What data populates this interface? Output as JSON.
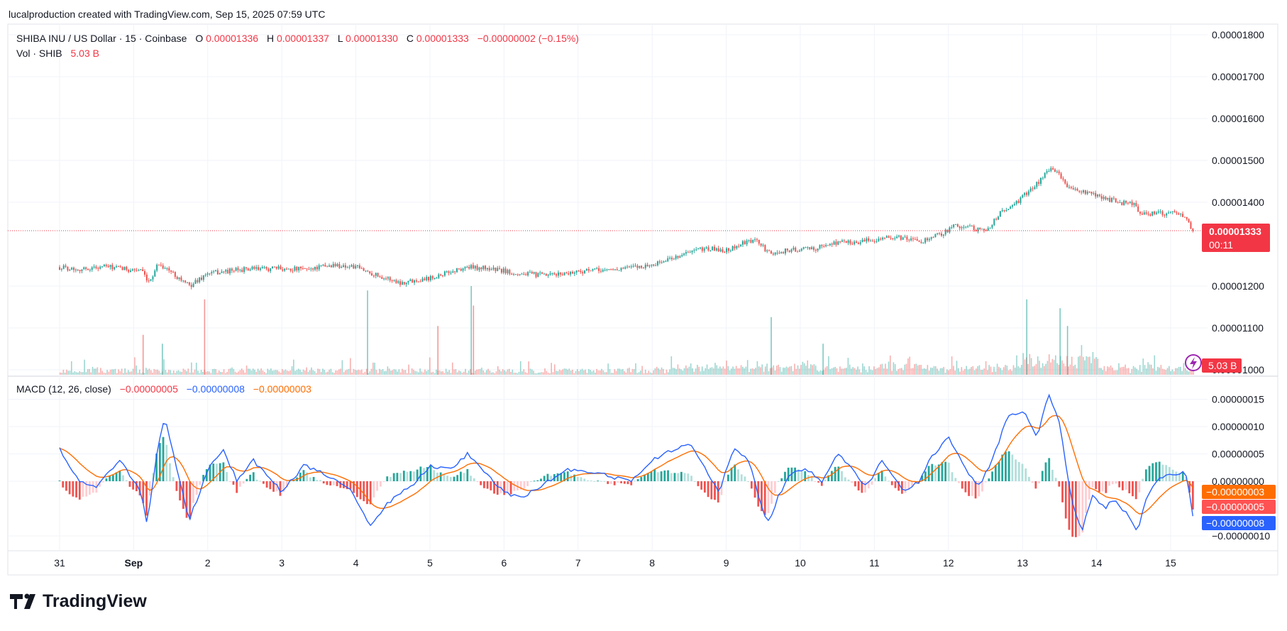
{
  "header": {
    "attribution": "lucalproduction created with TradingView.com, Sep 15, 2025 07:59 UTC"
  },
  "legend": {
    "symbol": "SHIBA INU / US Dollar · 15 · Coinbase",
    "o_label": "O",
    "o_value": "0.00001336",
    "h_label": "H",
    "h_value": "0.00001337",
    "l_label": "L",
    "l_value": "0.00001330",
    "c_label": "C",
    "c_value": "0.00001333",
    "change": "−0.00000002 (−0.15%)",
    "vol_label": "Vol · SHIB",
    "vol_value": "5.03 B"
  },
  "macd_legend": {
    "label": "MACD (12, 26, close)",
    "hist_value": "−0.00000005",
    "macd_value": "−0.00000008",
    "signal_value": "−0.00000003"
  },
  "price_axis": {
    "ticks": [
      "0.00001800",
      "0.00001700",
      "0.00001600",
      "0.00001500",
      "0.00001400",
      "0.00001200",
      "0.00001100",
      "0.00001000"
    ],
    "current_price": "0.00001333",
    "countdown": "00:11",
    "volume_badge": "5.03 B"
  },
  "macd_axis": {
    "ticks": [
      "0.00000015",
      "0.00000010",
      "0.00000005",
      "0.00000000",
      "−0.00000010"
    ],
    "badge_signal": "−0.00000003",
    "badge_hist": "−0.00000005",
    "badge_macd": "−0.00000008"
  },
  "time_axis": {
    "labels": [
      "31",
      "Sep",
      "2",
      "3",
      "4",
      "5",
      "6",
      "7",
      "8",
      "9",
      "10",
      "11",
      "12",
      "13",
      "14",
      "15"
    ]
  },
  "logo": {
    "text": "TradingView"
  },
  "colors": {
    "up": "#26a69a",
    "down": "#ef5350",
    "macd": "#2962ff",
    "signal": "#ff6d00",
    "price_badge": "#f23645",
    "grid": "#f0f3fa",
    "text": "#131722"
  },
  "chart_data": [
    {
      "type": "candlestick",
      "title": "SHIBA INU / US Dollar · 15 · Coinbase",
      "x_labels": [
        "31",
        "Sep",
        "2",
        "3",
        "4",
        "5",
        "6",
        "7",
        "8",
        "9",
        "10",
        "11",
        "12",
        "13",
        "14",
        "15"
      ],
      "ylim": [
        9.8e-06,
        1.82e-05
      ],
      "approx_close_path": [
        [
          0.0,
          1.245e-05
        ],
        [
          0.3,
          1.24e-05
        ],
        [
          0.6,
          1.247e-05
        ],
        [
          0.9,
          1.24e-05
        ],
        [
          1.1,
          1.238e-05
        ],
        [
          1.2,
          1.205e-05
        ],
        [
          1.33,
          1.255e-05
        ],
        [
          1.55,
          1.228e-05
        ],
        [
          1.75,
          1.2e-05
        ],
        [
          2.0,
          1.23e-05
        ],
        [
          2.5,
          1.24e-05
        ],
        [
          3.0,
          1.242e-05
        ],
        [
          3.3,
          1.24e-05
        ],
        [
          3.7,
          1.25e-05
        ],
        [
          4.0,
          1.245e-05
        ],
        [
          4.3,
          1.225e-05
        ],
        [
          4.6,
          1.208e-05
        ],
        [
          5.0,
          1.22e-05
        ],
        [
          5.3,
          1.235e-05
        ],
        [
          5.5,
          1.245e-05
        ],
        [
          5.8,
          1.242e-05
        ],
        [
          6.2,
          1.23e-05
        ],
        [
          6.6,
          1.225e-05
        ],
        [
          7.0,
          1.235e-05
        ],
        [
          7.5,
          1.24e-05
        ],
        [
          8.0,
          1.25e-05
        ],
        [
          8.4,
          1.275e-05
        ],
        [
          8.7,
          1.29e-05
        ],
        [
          9.0,
          1.285e-05
        ],
        [
          9.2,
          1.3e-05
        ],
        [
          9.4,
          1.31e-05
        ],
        [
          9.6,
          1.275e-05
        ],
        [
          9.8,
          1.285e-05
        ],
        [
          10.2,
          1.29e-05
        ],
        [
          10.5,
          1.305e-05
        ],
        [
          10.8,
          1.305e-05
        ],
        [
          11.1,
          1.315e-05
        ],
        [
          11.4,
          1.315e-05
        ],
        [
          11.6,
          1.305e-05
        ],
        [
          11.9,
          1.325e-05
        ],
        [
          12.1,
          1.345e-05
        ],
        [
          12.3,
          1.34e-05
        ],
        [
          12.5,
          1.33e-05
        ],
        [
          12.7,
          1.375e-05
        ],
        [
          12.9,
          1.395e-05
        ],
        [
          13.1,
          1.43e-05
        ],
        [
          13.2,
          1.445e-05
        ],
        [
          13.35,
          1.478e-05
        ],
        [
          13.5,
          1.47e-05
        ],
        [
          13.6,
          1.435e-05
        ],
        [
          13.8,
          1.425e-05
        ],
        [
          14.0,
          1.415e-05
        ],
        [
          14.3,
          1.4e-05
        ],
        [
          14.5,
          1.395e-05
        ],
        [
          14.6,
          1.375e-05
        ],
        [
          14.8,
          1.372e-05
        ],
        [
          15.0,
          1.375e-05
        ],
        [
          15.18,
          1.37e-05
        ],
        [
          15.3,
          1.333e-05
        ]
      ],
      "last": {
        "open": 1.336e-05,
        "high": 1.337e-05,
        "low": 1.33e-05,
        "close": 1.333e-05,
        "change": -2e-08,
        "change_pct": -0.15
      }
    },
    {
      "type": "bar",
      "title": "Vol · SHIB",
      "last_value": "5.03 B",
      "spikes": [
        {
          "x": 1.12,
          "rel": 0.45
        },
        {
          "x": 1.38,
          "rel": 0.35
        },
        {
          "x": 1.95,
          "rel": 0.85
        },
        {
          "x": 4.15,
          "rel": 0.95
        },
        {
          "x": 5.1,
          "rel": 0.55
        },
        {
          "x": 5.55,
          "rel": 1.0
        },
        {
          "x": 5.58,
          "rel": 0.78
        },
        {
          "x": 9.6,
          "rel": 0.65
        },
        {
          "x": 10.3,
          "rel": 0.35
        },
        {
          "x": 13.05,
          "rel": 0.85
        },
        {
          "x": 13.5,
          "rel": 0.75
        },
        {
          "x": 13.6,
          "rel": 0.55
        }
      ]
    },
    {
      "type": "line",
      "title": "MACD (12, 26, close)",
      "ylim": [
        -1.15e-07,
        1.8e-07
      ],
      "series": [
        {
          "name": "MACD",
          "points": [
            [
              0.0,
              6e-08
            ],
            [
              0.25,
              0.0
            ],
            [
              0.5,
              -1e-08
            ],
            [
              0.8,
              4e-08
            ],
            [
              1.1,
              -2e-08
            ],
            [
              1.18,
              -8e-08
            ],
            [
              1.3,
              4e-08
            ],
            [
              1.42,
              1.2e-07
            ],
            [
              1.55,
              4e-08
            ],
            [
              1.75,
              -7e-08
            ],
            [
              2.0,
              2e-08
            ],
            [
              2.2,
              6e-08
            ],
            [
              2.4,
              0.0
            ],
            [
              2.6,
              4e-08
            ],
            [
              2.8,
              1e-08
            ],
            [
              3.0,
              -2e-08
            ],
            [
              3.3,
              3e-08
            ],
            [
              3.6,
              1e-08
            ],
            [
              3.9,
              -1e-08
            ],
            [
              4.2,
              -8e-08
            ],
            [
              4.5,
              -3e-08
            ],
            [
              4.75,
              -1e-08
            ],
            [
              5.0,
              3e-08
            ],
            [
              5.3,
              2e-08
            ],
            [
              5.5,
              5e-08
            ],
            [
              5.7,
              2e-08
            ],
            [
              6.0,
              -2e-08
            ],
            [
              6.2,
              -3e-08
            ],
            [
              6.5,
              -1e-08
            ],
            [
              6.8,
              2e-08
            ],
            [
              7.1,
              2e-08
            ],
            [
              7.4,
              1e-08
            ],
            [
              7.7,
              0.0
            ],
            [
              8.0,
              4e-08
            ],
            [
              8.3,
              6e-08
            ],
            [
              8.5,
              7e-08
            ],
            [
              8.7,
              3e-08
            ],
            [
              8.9,
              -2e-08
            ],
            [
              9.1,
              6e-08
            ],
            [
              9.3,
              4e-08
            ],
            [
              9.55,
              -8e-08
            ],
            [
              9.7,
              -3e-08
            ],
            [
              9.9,
              2e-08
            ],
            [
              10.1,
              2e-08
            ],
            [
              10.3,
              0.0
            ],
            [
              10.5,
              5e-08
            ],
            [
              10.7,
              2e-08
            ],
            [
              10.9,
              -1e-08
            ],
            [
              11.1,
              4e-08
            ],
            [
              11.4,
              -2e-08
            ],
            [
              11.6,
              0.0
            ],
            [
              11.8,
              5e-08
            ],
            [
              12.0,
              8e-08
            ],
            [
              12.2,
              3e-08
            ],
            [
              12.4,
              -1e-08
            ],
            [
              12.6,
              4e-08
            ],
            [
              12.8,
              1.2e-07
            ],
            [
              13.0,
              1.3e-07
            ],
            [
              13.2,
              8e-08
            ],
            [
              13.35,
              1.6e-07
            ],
            [
              13.5,
              1.1e-07
            ],
            [
              13.65,
              -3e-08
            ],
            [
              13.8,
              -9e-08
            ],
            [
              13.95,
              -2e-08
            ],
            [
              14.1,
              -5e-08
            ],
            [
              14.25,
              -3e-08
            ],
            [
              14.4,
              -6e-08
            ],
            [
              14.55,
              -9e-08
            ],
            [
              14.7,
              -2e-08
            ],
            [
              14.9,
              1e-08
            ],
            [
              15.1,
              1e-08
            ],
            [
              15.2,
              2e-08
            ],
            [
              15.32,
              -8e-08
            ]
          ]
        },
        {
          "name": "Signal",
          "smoothing_of": "MACD"
        },
        {
          "name": "Histogram",
          "derived": "MACD − Signal"
        }
      ],
      "last": {
        "histogram": -5e-08,
        "macd": -8e-08,
        "signal": -3e-08
      }
    }
  ]
}
